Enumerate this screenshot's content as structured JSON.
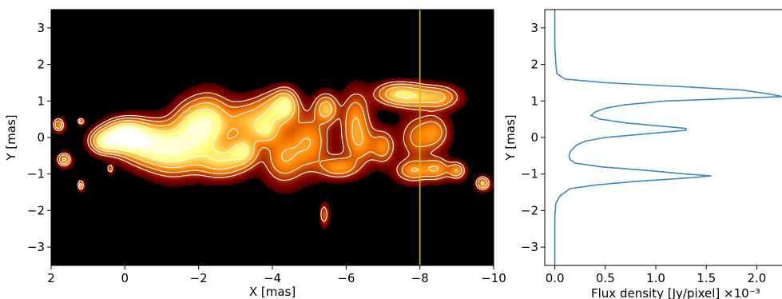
{
  "chart_data": [
    {
      "type": "heatmap",
      "subtype": "radio-image-with-contours",
      "xlabel": "X [mas]",
      "ylabel": "Y [mas]",
      "xlim": [
        2,
        -10
      ],
      "ylim": [
        -3.5,
        3.5
      ],
      "x_ticks": [
        2,
        0,
        -2,
        -4,
        -6,
        -8,
        -10
      ],
      "x_tick_labels": [
        "2",
        "0",
        "−2",
        "−4",
        "−6",
        "−8",
        "−10"
      ],
      "y_ticks": [
        3,
        2,
        1,
        0,
        -1,
        -2,
        -3
      ],
      "y_tick_labels": [
        "3",
        "2",
        "1",
        "0",
        "−1",
        "−2",
        "−3"
      ],
      "colormap": "afmhot",
      "background_color": "#000000",
      "contour_color": "#ffffff",
      "vertical_line": {
        "x": -8,
        "color": "#c8c400"
      },
      "components": [
        {
          "x": 0.0,
          "y": 0.05,
          "sx": 0.35,
          "sy": 0.25,
          "amp": 1.0
        },
        {
          "x": 0.55,
          "y": -0.1,
          "sx": 0.25,
          "sy": 0.2,
          "amp": 0.55
        },
        {
          "x": -0.6,
          "y": -0.15,
          "sx": 0.45,
          "sy": 0.35,
          "amp": 0.6
        },
        {
          "x": -1.3,
          "y": -0.35,
          "sx": 0.45,
          "sy": 0.4,
          "amp": 0.55
        },
        {
          "x": -1.8,
          "y": 0.2,
          "sx": 0.35,
          "sy": 0.45,
          "amp": 0.5
        },
        {
          "x": -2.3,
          "y": 0.4,
          "sx": 0.35,
          "sy": 0.45,
          "amp": 0.55
        },
        {
          "x": -2.6,
          "y": -0.6,
          "sx": 0.45,
          "sy": 0.3,
          "amp": 0.45
        },
        {
          "x": -3.2,
          "y": -0.35,
          "sx": 0.25,
          "sy": 0.25,
          "amp": 0.45
        },
        {
          "x": -3.3,
          "y": 0.45,
          "sx": 0.4,
          "sy": 0.35,
          "amp": 0.35
        },
        {
          "x": -3.8,
          "y": 0.2,
          "sx": 0.25,
          "sy": 0.25,
          "amp": 0.35
        },
        {
          "x": -4.1,
          "y": 0.75,
          "sx": 0.35,
          "sy": 0.3,
          "amp": 0.45
        },
        {
          "x": -4.35,
          "y": 0.95,
          "sx": 0.2,
          "sy": 0.25,
          "amp": 0.35
        },
        {
          "x": -4.3,
          "y": -0.55,
          "sx": 0.35,
          "sy": 0.45,
          "amp": 0.3
        },
        {
          "x": -5.0,
          "y": -0.1,
          "sx": 0.35,
          "sy": 0.5,
          "amp": 0.3
        },
        {
          "x": -5.45,
          "y": 0.8,
          "sx": 0.2,
          "sy": 0.25,
          "amp": 0.4
        },
        {
          "x": -5.8,
          "y": -0.8,
          "sx": 0.35,
          "sy": 0.2,
          "amp": 0.3
        },
        {
          "x": -6.25,
          "y": 0.5,
          "sx": 0.25,
          "sy": 0.5,
          "amp": 0.3
        },
        {
          "x": -6.4,
          "y": -0.2,
          "sx": 0.3,
          "sy": 0.35,
          "amp": 0.22
        },
        {
          "x": -7.0,
          "y": -0.25,
          "sx": 0.2,
          "sy": 0.3,
          "amp": 0.25
        },
        {
          "x": -7.3,
          "y": 1.2,
          "sx": 0.35,
          "sy": 0.2,
          "amp": 0.35
        },
        {
          "x": -7.8,
          "y": 1.15,
          "sx": 0.35,
          "sy": 0.2,
          "amp": 0.35
        },
        {
          "x": -8.5,
          "y": 1.1,
          "sx": 0.35,
          "sy": 0.2,
          "amp": 0.35
        },
        {
          "x": -7.9,
          "y": 0.0,
          "sx": 0.3,
          "sy": 0.4,
          "amp": 0.22
        },
        {
          "x": -8.4,
          "y": 0.15,
          "sx": 0.25,
          "sy": 0.3,
          "amp": 0.25
        },
        {
          "x": -7.8,
          "y": -0.9,
          "sx": 0.3,
          "sy": 0.2,
          "amp": 0.3
        },
        {
          "x": -8.45,
          "y": -0.85,
          "sx": 0.25,
          "sy": 0.2,
          "amp": 0.3
        },
        {
          "x": -9.0,
          "y": -0.9,
          "sx": 0.15,
          "sy": 0.15,
          "amp": 0.3
        },
        {
          "x": -9.7,
          "y": -1.25,
          "sx": 0.12,
          "sy": 0.12,
          "amp": 0.35
        },
        {
          "x": 1.8,
          "y": 0.35,
          "sx": 0.1,
          "sy": 0.12,
          "amp": 0.3
        },
        {
          "x": 1.65,
          "y": -0.6,
          "sx": 0.12,
          "sy": 0.12,
          "amp": 0.35
        },
        {
          "x": 1.2,
          "y": 0.45,
          "sx": 0.06,
          "sy": 0.06,
          "amp": 0.25
        },
        {
          "x": 1.2,
          "y": -1.3,
          "sx": 0.06,
          "sy": 0.1,
          "amp": 0.25
        },
        {
          "x": 0.4,
          "y": -0.85,
          "sx": 0.05,
          "sy": 0.08,
          "amp": 0.22
        },
        {
          "x": -5.4,
          "y": -2.1,
          "sx": 0.08,
          "sy": 0.2,
          "amp": 0.2
        }
      ],
      "contour_levels": [
        0.12,
        0.2,
        0.32,
        0.5,
        0.75
      ]
    },
    {
      "type": "line",
      "xlabel": "Flux density [Jy/pixel] ×10⁻³",
      "ylabel": "Y [mas]",
      "xlim": [
        -0.1,
        2.25
      ],
      "ylim": [
        -3.5,
        3.5
      ],
      "x_ticks": [
        0.0,
        0.5,
        1.0,
        1.5,
        2.0
      ],
      "x_tick_labels": [
        "0.0",
        "0.5",
        "1.0",
        "1.5",
        "2.0"
      ],
      "y_ticks": [
        3,
        2,
        1,
        0,
        -1,
        -2,
        -3
      ],
      "y_tick_labels": [
        "3",
        "2",
        "1",
        "0",
        "−1",
        "−2",
        "−3"
      ],
      "line_color": "#3a8ac0",
      "series": [
        {
          "y": [
            3.5,
            2.5,
            2.0,
            1.75,
            1.6,
            1.5,
            1.4,
            1.3,
            1.2,
            1.15,
            1.12,
            1.05,
            1.0,
            0.9,
            0.8,
            0.7,
            0.6,
            0.5,
            0.4,
            0.3,
            0.25,
            0.2,
            0.1,
            0.0,
            -0.1,
            -0.2,
            -0.3,
            -0.4,
            -0.5,
            -0.6,
            -0.7,
            -0.8,
            -0.9,
            -1.0,
            -1.05,
            -1.1,
            -1.2,
            -1.3,
            -1.4,
            -1.6,
            -1.8,
            -2.2,
            -3.5
          ],
          "x": [
            0.0,
            0.0,
            0.01,
            0.02,
            0.1,
            0.5,
            1.2,
            1.85,
            2.1,
            2.2,
            2.25,
            1.6,
            1.1,
            0.7,
            0.5,
            0.4,
            0.36,
            0.45,
            0.7,
            1.1,
            1.3,
            1.3,
            0.9,
            0.5,
            0.3,
            0.22,
            0.18,
            0.15,
            0.14,
            0.15,
            0.2,
            0.45,
            0.9,
            1.3,
            1.55,
            1.35,
            0.8,
            0.4,
            0.15,
            0.05,
            0.01,
            0.0,
            0.0
          ]
        }
      ]
    }
  ]
}
